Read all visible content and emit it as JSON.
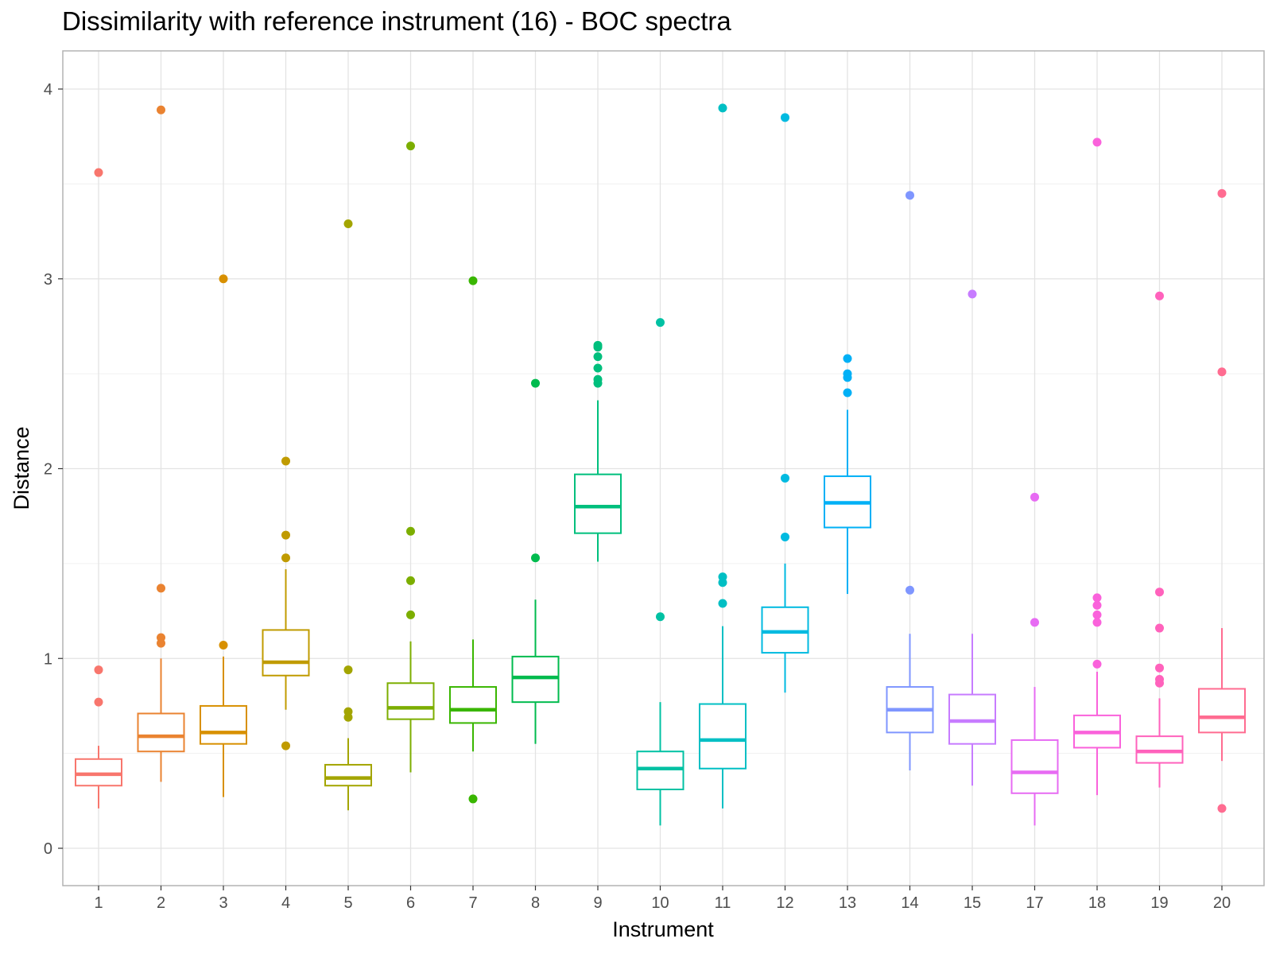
{
  "chart_data": {
    "type": "boxplot",
    "title": "Dissimilarity with reference instrument (16) - BOC spectra",
    "xlabel": "Instrument",
    "ylabel": "Distance",
    "ylim": [
      -0.2,
      4.2
    ],
    "yticks": [
      0,
      1,
      2,
      3,
      4
    ],
    "grid": true,
    "legend": "none",
    "categories": [
      "1",
      "2",
      "3",
      "4",
      "5",
      "6",
      "7",
      "8",
      "9",
      "10",
      "11",
      "12",
      "13",
      "14",
      "15",
      "17",
      "18",
      "19",
      "20"
    ],
    "colors": [
      "#F8766D",
      "#E58700",
      "#C99800",
      "#A3A500",
      "#6BB100",
      "#00BA38",
      "#00BF7D",
      "#00C0AF",
      "#00BCD8",
      "#00B0F6",
      "#619CFF",
      "#B983FF",
      "#E76BF3",
      "#FD61D1",
      "#FF67A4",
      "#E88526",
      "#C77CFF",
      "#F564E3",
      "#FF6C91"
    ],
    "series": [
      {
        "category": "1",
        "color": "#F8766D",
        "whisker_low": 0.21,
        "q1": 0.33,
        "median": 0.39,
        "q3": 0.47,
        "whisker_high": 0.54,
        "outliers": [
          0.77,
          0.94,
          3.56
        ]
      },
      {
        "category": "2",
        "color": "#EA8331",
        "whisker_low": 0.35,
        "q1": 0.51,
        "median": 0.59,
        "q3": 0.71,
        "whisker_high": 1.0,
        "outliers": [
          1.08,
          1.11,
          1.37,
          3.89
        ]
      },
      {
        "category": "3",
        "color": "#D89000",
        "whisker_low": 0.27,
        "q1": 0.55,
        "median": 0.61,
        "q3": 0.75,
        "whisker_high": 1.01,
        "outliers": [
          1.07,
          3.0
        ]
      },
      {
        "category": "4",
        "color": "#C09B00",
        "whisker_low": 0.73,
        "q1": 0.91,
        "median": 0.98,
        "q3": 1.15,
        "whisker_high": 1.47,
        "outliers": [
          0.54,
          1.53,
          1.65,
          2.04
        ]
      },
      {
        "category": "5",
        "color": "#A3A500",
        "whisker_low": 0.2,
        "q1": 0.33,
        "median": 0.37,
        "q3": 0.44,
        "whisker_high": 0.58,
        "outliers": [
          0.69,
          0.72,
          0.94,
          3.29
        ]
      },
      {
        "category": "6",
        "color": "#7CAE00",
        "whisker_low": 0.4,
        "q1": 0.68,
        "median": 0.74,
        "q3": 0.87,
        "whisker_high": 1.09,
        "outliers": [
          1.23,
          1.41,
          1.67,
          3.7
        ]
      },
      {
        "category": "7",
        "color": "#39B600",
        "whisker_low": 0.51,
        "q1": 0.66,
        "median": 0.73,
        "q3": 0.85,
        "whisker_high": 1.1,
        "outliers": [
          0.26,
          2.99
        ]
      },
      {
        "category": "8",
        "color": "#00BB4E",
        "whisker_low": 0.55,
        "q1": 0.77,
        "median": 0.9,
        "q3": 1.01,
        "whisker_high": 1.31,
        "outliers": [
          1.53,
          2.45
        ]
      },
      {
        "category": "9",
        "color": "#00BF7D",
        "whisker_low": 1.51,
        "q1": 1.66,
        "median": 1.8,
        "q3": 1.97,
        "whisker_high": 2.36,
        "outliers": [
          2.45,
          2.47,
          2.53,
          2.59,
          2.64,
          2.65
        ]
      },
      {
        "category": "10",
        "color": "#00C1A3",
        "whisker_low": 0.12,
        "q1": 0.31,
        "median": 0.42,
        "q3": 0.51,
        "whisker_high": 0.77,
        "outliers": [
          1.22,
          2.77
        ]
      },
      {
        "category": "11",
        "color": "#00BFC4",
        "whisker_low": 0.21,
        "q1": 0.42,
        "median": 0.57,
        "q3": 0.76,
        "whisker_high": 1.17,
        "outliers": [
          1.29,
          1.4,
          1.43,
          3.9
        ]
      },
      {
        "category": "12",
        "color": "#00BAE0",
        "whisker_low": 0.82,
        "q1": 1.03,
        "median": 1.14,
        "q3": 1.27,
        "whisker_high": 1.5,
        "outliers": [
          1.64,
          1.95,
          3.85
        ]
      },
      {
        "category": "13",
        "color": "#00B0F6",
        "whisker_low": 1.34,
        "q1": 1.69,
        "median": 1.82,
        "q3": 1.96,
        "whisker_high": 2.31,
        "outliers": [
          2.4,
          2.48,
          2.5,
          2.58
        ]
      },
      {
        "category": "14",
        "color": "#7F96FF",
        "whisker_low": 0.41,
        "q1": 0.61,
        "median": 0.73,
        "q3": 0.85,
        "whisker_high": 1.13,
        "outliers": [
          1.36,
          3.44
        ]
      },
      {
        "category": "15",
        "color": "#C77CFF",
        "whisker_low": 0.33,
        "q1": 0.55,
        "median": 0.67,
        "q3": 0.81,
        "whisker_high": 1.13,
        "outliers": [
          2.92
        ]
      },
      {
        "category": "17",
        "color": "#E76BF3",
        "whisker_low": 0.12,
        "q1": 0.29,
        "median": 0.4,
        "q3": 0.57,
        "whisker_high": 0.85,
        "outliers": [
          1.19,
          1.85
        ]
      },
      {
        "category": "18",
        "color": "#FA62DB",
        "whisker_low": 0.28,
        "q1": 0.53,
        "median": 0.61,
        "q3": 0.7,
        "whisker_high": 0.93,
        "outliers": [
          0.97,
          1.19,
          1.23,
          1.28,
          1.32,
          3.72
        ]
      },
      {
        "category": "19",
        "color": "#FF62BC",
        "whisker_low": 0.32,
        "q1": 0.45,
        "median": 0.51,
        "q3": 0.59,
        "whisker_high": 0.79,
        "outliers": [
          0.87,
          0.89,
          0.95,
          1.16,
          1.35,
          2.91
        ]
      },
      {
        "category": "20",
        "color": "#FF6C91",
        "whisker_low": 0.46,
        "q1": 0.61,
        "median": 0.69,
        "q3": 0.84,
        "whisker_high": 1.16,
        "outliers": [
          0.21,
          2.51,
          3.45
        ]
      }
    ]
  }
}
